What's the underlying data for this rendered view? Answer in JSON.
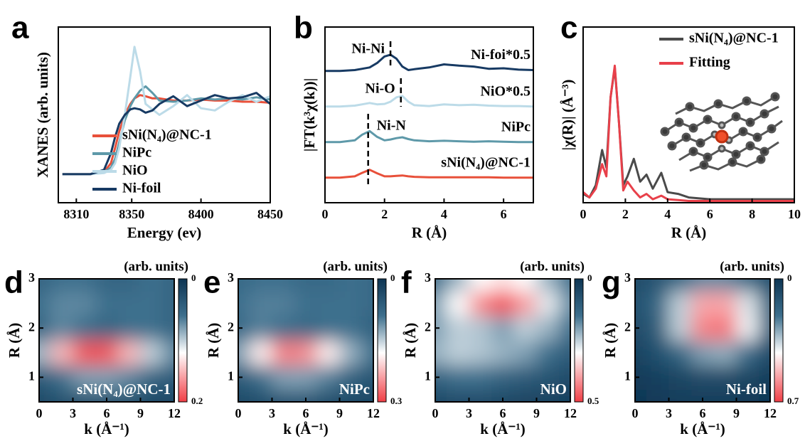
{
  "chart_data": [
    {
      "type": "line",
      "panel": "a",
      "xlabel": "Energy (ev)",
      "ylabel": "XANES (arb. units)",
      "x": [
        8300,
        8320,
        8330,
        8335,
        8338,
        8341,
        8345,
        8349,
        8352,
        8356,
        8360,
        8365,
        8370,
        8380,
        8390,
        8400,
        8410,
        8420,
        8430,
        8440,
        8450
      ],
      "series": [
        {
          "name": "sNi(N₄)@NC-1",
          "color": "#e8503a",
          "values": [
            0.26,
            0.26,
            0.28,
            0.36,
            0.5,
            0.65,
            0.8,
            0.9,
            0.95,
            0.98,
            0.97,
            0.95,
            0.95,
            0.93,
            0.93,
            0.94,
            0.93,
            0.93,
            0.92,
            0.92,
            0.91
          ]
        },
        {
          "name": "NiPc",
          "color": "#5e99a9",
          "values": [
            0.26,
            0.26,
            0.28,
            0.32,
            0.4,
            0.55,
            0.75,
            0.88,
            0.95,
            1.02,
            1.06,
            1.0,
            0.93,
            0.92,
            0.93,
            0.95,
            0.94,
            0.95,
            0.94,
            0.96,
            0.94
          ]
        },
        {
          "name": "NiO",
          "color": "#bcdbe8",
          "values": [
            0.26,
            0.26,
            0.27,
            0.3,
            0.36,
            0.5,
            0.8,
            1.15,
            1.42,
            1.2,
            0.9,
            0.85,
            0.8,
            0.88,
            0.98,
            0.86,
            0.84,
            0.92,
            0.98,
            0.92,
            0.97
          ]
        },
        {
          "name": "Ni-foil",
          "color": "#173a63",
          "values": [
            0.26,
            0.26,
            0.3,
            0.45,
            0.6,
            0.72,
            0.8,
            0.85,
            0.86,
            0.85,
            0.82,
            0.84,
            0.9,
            0.97,
            0.88,
            0.93,
            0.98,
            0.95,
            0.96,
            1.0,
            0.9
          ]
        }
      ],
      "xlim": [
        8297,
        8450
      ],
      "xticks": [
        8310,
        8350,
        8400,
        8450
      ],
      "ylim": [
        0,
        1.6
      ],
      "legend": "lower right"
    },
    {
      "type": "line",
      "panel": "b",
      "xlabel": "R (Å)",
      "ylabel": "|FT(k³χ(k))|",
      "x": [
        0,
        0.5,
        1,
        1.25,
        1.5,
        1.75,
        2,
        2.2,
        2.4,
        2.6,
        2.8,
        3,
        3.5,
        4,
        4.5,
        5,
        5.5,
        6,
        6.5,
        7
      ],
      "series": [
        {
          "name": "Ni-foi*0.5",
          "color": "#173a63",
          "values": [
            3.0,
            3.0,
            3.02,
            3.05,
            3.08,
            3.18,
            3.33,
            3.37,
            3.28,
            3.1,
            3.02,
            3.04,
            3.08,
            3.15,
            3.12,
            3.1,
            3.05,
            3.06,
            3.03,
            3.02
          ]
        },
        {
          "name": "NiO*0.5",
          "color": "#bcdbe8",
          "values": [
            2.19,
            2.19,
            2.21,
            2.24,
            2.27,
            2.24,
            2.25,
            2.3,
            2.4,
            2.43,
            2.3,
            2.22,
            2.2,
            2.24,
            2.22,
            2.23,
            2.21,
            2.2,
            2.2,
            2.19
          ]
        },
        {
          "name": "NiPc",
          "color": "#5e99a9",
          "values": [
            1.38,
            1.38,
            1.42,
            1.55,
            1.63,
            1.5,
            1.42,
            1.44,
            1.47,
            1.49,
            1.45,
            1.42,
            1.4,
            1.41,
            1.4,
            1.39,
            1.4,
            1.39,
            1.38,
            1.38
          ]
        },
        {
          "name": "sNi(N₄)@NC-1",
          "color": "#e8503a",
          "values": [
            0.57,
            0.57,
            0.6,
            0.68,
            0.75,
            0.67,
            0.6,
            0.6,
            0.61,
            0.62,
            0.6,
            0.59,
            0.58,
            0.58,
            0.58,
            0.58,
            0.58,
            0.57,
            0.57,
            0.57
          ]
        }
      ],
      "annotations": [
        {
          "text": "Ni-Ni",
          "x": 2.2
        },
        {
          "text": "Ni-O",
          "x": 2.55
        },
        {
          "text": "Ni-N",
          "x": 1.45
        }
      ],
      "xlim": [
        0,
        7
      ],
      "xticks": [
        0,
        2,
        4,
        6
      ],
      "ylim": [
        0,
        4
      ]
    },
    {
      "type": "line",
      "panel": "c",
      "xlabel": "R (Å)",
      "ylabel": "|χ(R)| (Å⁻³)",
      "x": [
        0,
        0.3,
        0.6,
        0.9,
        1.1,
        1.3,
        1.5,
        1.7,
        1.9,
        2.1,
        2.4,
        2.7,
        3,
        3.3,
        3.7,
        4,
        4.5,
        5,
        6,
        7,
        8,
        9,
        10
      ],
      "series": [
        {
          "name": "sNi(N₄)@NC-1",
          "color": "#4a4a4a",
          "values": [
            0.05,
            0.03,
            0.1,
            0.3,
            0.2,
            0.6,
            0.77,
            0.45,
            0.1,
            0.15,
            0.25,
            0.12,
            0.16,
            0.08,
            0.17,
            0.06,
            0.05,
            0.03,
            0.02,
            0.02,
            0.02,
            0.02,
            0.02
          ]
        },
        {
          "name": "Fitting",
          "color": "#e8404a",
          "values": [
            0.06,
            0.03,
            0.08,
            0.22,
            0.15,
            0.6,
            0.78,
            0.45,
            0.07,
            0.12,
            0.07,
            0.03,
            0.05,
            0.02,
            0.04,
            0.02,
            0.015,
            0.01,
            0.01,
            0.01,
            0.01,
            0.01,
            0.01
          ]
        }
      ],
      "xlim": [
        0,
        10
      ],
      "xticks": [
        0,
        2,
        4,
        6,
        8,
        10
      ],
      "ylim": [
        0,
        1
      ],
      "legend": "upper right"
    },
    {
      "type": "heatmap",
      "panel": "d",
      "xlabel": "k (Å⁻¹)",
      "ylabel": "R (Å)",
      "colorbar_label": "(arb. units)",
      "label": "sNi(N₄)@NC-1",
      "x": [
        0,
        2,
        4,
        6,
        8,
        10,
        12
      ],
      "y": [
        0.5,
        1,
        1.5,
        2,
        2.5,
        3
      ],
      "z": [
        [
          0.02,
          0.03,
          0.03,
          0.03,
          0.03,
          0.02,
          0.02
        ],
        [
          0.04,
          0.06,
          0.08,
          0.08,
          0.07,
          0.05,
          0.04
        ],
        [
          0.09,
          0.15,
          0.19,
          0.19,
          0.15,
          0.1,
          0.07
        ],
        [
          0.05,
          0.07,
          0.06,
          0.05,
          0.06,
          0.06,
          0.05
        ],
        [
          0.06,
          0.07,
          0.07,
          0.06,
          0.06,
          0.06,
          0.05
        ],
        [
          0.05,
          0.06,
          0.06,
          0.05,
          0.05,
          0.06,
          0.05
        ]
      ],
      "xlim": [
        0,
        12
      ],
      "xticks": [
        0,
        3,
        6,
        9,
        12
      ],
      "ylim": [
        0.5,
        3
      ],
      "yticks": [
        1,
        2,
        3
      ],
      "zlim": [
        0,
        0.2
      ],
      "zticks": [
        0,
        0.2
      ]
    },
    {
      "type": "heatmap",
      "panel": "e",
      "xlabel": "k (Å⁻¹)",
      "ylabel": "R (Å)",
      "colorbar_label": "(arb. units)",
      "label": "NiPc",
      "x": [
        0,
        2,
        4,
        6,
        8,
        10,
        12
      ],
      "y": [
        0.5,
        1,
        1.5,
        2,
        2.5,
        3
      ],
      "z": [
        [
          0.03,
          0.04,
          0.05,
          0.05,
          0.04,
          0.03,
          0.03
        ],
        [
          0.06,
          0.09,
          0.12,
          0.12,
          0.1,
          0.07,
          0.05
        ],
        [
          0.12,
          0.19,
          0.26,
          0.25,
          0.19,
          0.13,
          0.09
        ],
        [
          0.08,
          0.1,
          0.09,
          0.08,
          0.09,
          0.09,
          0.07
        ],
        [
          0.09,
          0.1,
          0.1,
          0.09,
          0.09,
          0.09,
          0.08
        ],
        [
          0.08,
          0.09,
          0.09,
          0.08,
          0.08,
          0.09,
          0.08
        ]
      ],
      "xlim": [
        0,
        12
      ],
      "xticks": [
        0,
        3,
        6,
        9,
        12
      ],
      "ylim": [
        0.5,
        3
      ],
      "yticks": [
        1,
        2,
        3
      ],
      "zlim": [
        0,
        0.3
      ],
      "zticks": [
        0,
        0.3
      ]
    },
    {
      "type": "heatmap",
      "panel": "f",
      "xlabel": "k (Å⁻¹)",
      "ylabel": "R (Å)",
      "colorbar_label": "(arb. units)",
      "label": "NiO",
      "x": [
        0,
        2,
        4,
        6,
        8,
        10,
        12
      ],
      "y": [
        0.5,
        1,
        1.5,
        2,
        2.5,
        3
      ],
      "z": [
        [
          0.05,
          0.06,
          0.06,
          0.05,
          0.04,
          0.04,
          0.03
        ],
        [
          0.12,
          0.15,
          0.15,
          0.12,
          0.1,
          0.08,
          0.06
        ],
        [
          0.22,
          0.25,
          0.24,
          0.22,
          0.2,
          0.15,
          0.1
        ],
        [
          0.2,
          0.25,
          0.24,
          0.2,
          0.25,
          0.22,
          0.15
        ],
        [
          0.2,
          0.3,
          0.42,
          0.48,
          0.4,
          0.28,
          0.18
        ],
        [
          0.15,
          0.22,
          0.3,
          0.33,
          0.3,
          0.22,
          0.15
        ]
      ],
      "xlim": [
        0,
        12
      ],
      "xticks": [
        0,
        3,
        6,
        9,
        12
      ],
      "ylim": [
        0.5,
        3
      ],
      "yticks": [
        1,
        2,
        3
      ],
      "zlim": [
        0,
        0.5
      ],
      "zticks": [
        0,
        0.5
      ]
    },
    {
      "type": "heatmap",
      "panel": "g",
      "xlabel": "k (Å⁻¹)",
      "ylabel": "R (Å)",
      "colorbar_label": "(arb. units)",
      "label": "Ni-foil",
      "x": [
        0,
        2,
        4,
        6,
        8,
        10,
        12
      ],
      "y": [
        0.5,
        1,
        1.5,
        2,
        2.5,
        3
      ],
      "z": [
        [
          0.01,
          0.02,
          0.03,
          0.03,
          0.03,
          0.02,
          0.01
        ],
        [
          0.02,
          0.04,
          0.06,
          0.08,
          0.08,
          0.06,
          0.03
        ],
        [
          0.05,
          0.1,
          0.18,
          0.28,
          0.3,
          0.2,
          0.08
        ],
        [
          0.08,
          0.15,
          0.35,
          0.6,
          0.62,
          0.4,
          0.15
        ],
        [
          0.1,
          0.18,
          0.35,
          0.55,
          0.55,
          0.38,
          0.15
        ],
        [
          0.08,
          0.12,
          0.18,
          0.25,
          0.25,
          0.18,
          0.1
        ]
      ],
      "xlim": [
        0,
        12
      ],
      "xticks": [
        0,
        3,
        6,
        9,
        12
      ],
      "ylim": [
        0.5,
        3
      ],
      "yticks": [
        1,
        2,
        3
      ],
      "zlim": [
        0,
        0.7
      ],
      "zticks": [
        0,
        0.7
      ]
    }
  ]
}
